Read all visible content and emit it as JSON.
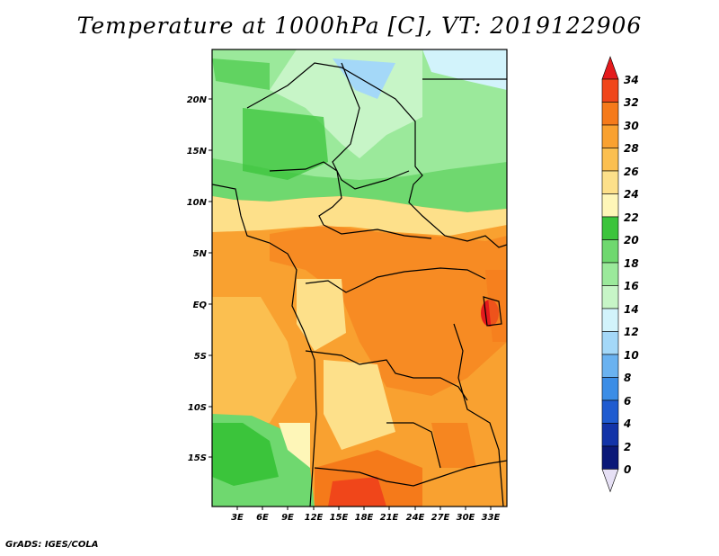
{
  "title": "Temperature at 1000hPa [C], VT: 2019122906",
  "credit": "GrADS: IGES/COLA",
  "map": {
    "lat_labels": [
      "20N",
      "15N",
      "10N",
      "5N",
      "EQ",
      "5S",
      "10S",
      "15S"
    ],
    "lon_labels": [
      "3E",
      "6E",
      "9E",
      "12E",
      "15E",
      "18E",
      "21E",
      "24E",
      "27E",
      "30E",
      "33E"
    ]
  },
  "legend": {
    "labels": [
      "34",
      "32",
      "30",
      "28",
      "26",
      "24",
      "22",
      "20",
      "18",
      "16",
      "14",
      "12",
      "10",
      "8",
      "6",
      "4",
      "2",
      "0"
    ],
    "colors": [
      "#e41a1c",
      "#f0461a",
      "#f57a1a",
      "#f9a130",
      "#fbbf50",
      "#fde08a",
      "#fef6b8",
      "#3bc43b",
      "#6fd86f",
      "#9be99b",
      "#c7f5c7",
      "#d2f3fb",
      "#a4d8f8",
      "#6ab2f0",
      "#3b8de6",
      "#1f5bd0",
      "#1233a8",
      "#0a1878",
      "#e6e0f5"
    ]
  }
}
